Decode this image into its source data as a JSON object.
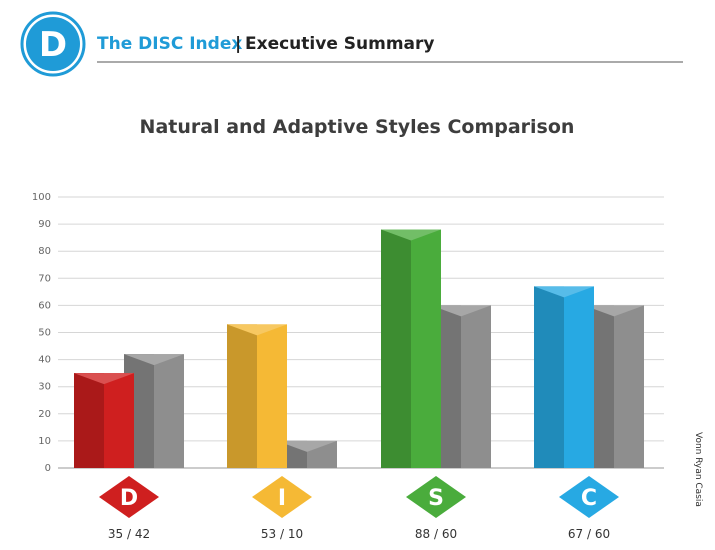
{
  "header": {
    "logo_letter": "D",
    "brand": "The DISC Index",
    "separator": "|",
    "subtitle": "Executive Summary"
  },
  "credit": "Vonn Ryan Casia",
  "colors": {
    "brand_blue": "#1f9bd7",
    "text_dark": "#222222",
    "grid": "#d6d6d6",
    "axis": "#999999",
    "adaptive": "#8e8e8e"
  },
  "chart_data": {
    "type": "bar",
    "title": "Natural and Adaptive Styles Comparison",
    "xlabel": "",
    "ylabel": "",
    "ylim": [
      0,
      100
    ],
    "yticks": [
      0,
      10,
      20,
      30,
      40,
      50,
      60,
      70,
      80,
      90,
      100
    ],
    "grid": true,
    "categories": [
      "D",
      "I",
      "S",
      "C"
    ],
    "category_colors": [
      "#cf1f1f",
      "#f5b935",
      "#4aac3c",
      "#27a9e3"
    ],
    "category_labels": [
      "35 / 42",
      "53 / 10",
      "88 / 60",
      "67 / 60"
    ],
    "series": [
      {
        "values": [
          35,
          53,
          88,
          67
        ]
      },
      {
        "values": [
          42,
          10,
          60,
          60
        ]
      }
    ]
  }
}
